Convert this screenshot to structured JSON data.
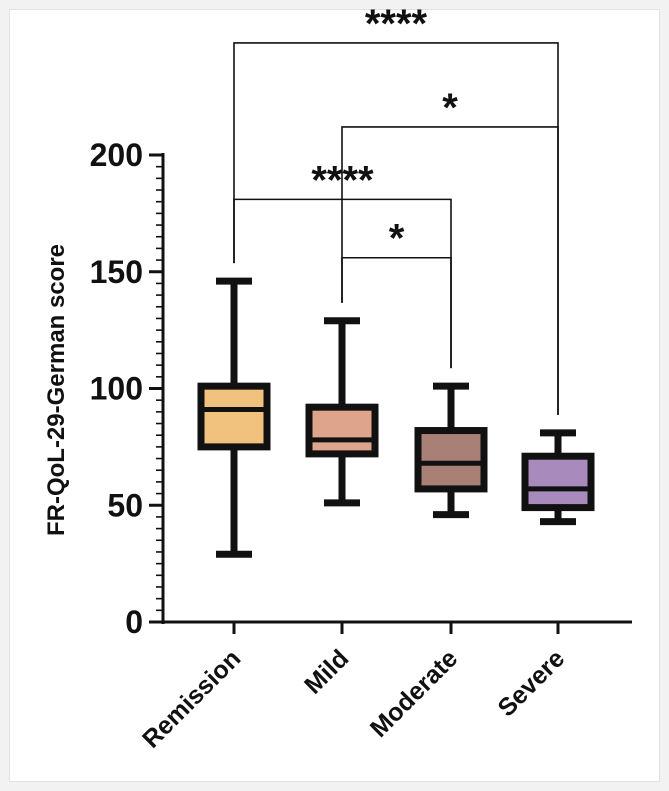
{
  "chart_data": {
    "type": "box",
    "title": "",
    "xlabel": "",
    "ylabel": "FR-QoL-29-German score",
    "ylim": [
      0,
      200
    ],
    "yticks": [
      0,
      50,
      100,
      150,
      200
    ],
    "categories": [
      "Remission",
      "Mild",
      "Moderate",
      "Severe"
    ],
    "boxes": [
      {
        "name": "Remission",
        "min": 29,
        "q1": 75,
        "median": 91,
        "q3": 101,
        "max": 146,
        "color": "#f0c27e"
      },
      {
        "name": "Mild",
        "min": 51,
        "q1": 72,
        "median": 78,
        "q3": 92,
        "max": 129,
        "color": "#dea58c"
      },
      {
        "name": "Moderate",
        "min": 46,
        "q1": 57,
        "median": 68,
        "q3": 82,
        "max": 101,
        "color": "#a88076"
      },
      {
        "name": "Severe",
        "min": 43,
        "q1": 49,
        "median": 57,
        "q3": 71,
        "max": 81,
        "color": "#a88bbc"
      }
    ],
    "significance": [
      {
        "from": "Remission",
        "to": "Severe",
        "label": "****",
        "level": 248
      },
      {
        "from": "Mild",
        "to": "Severe",
        "label": "*",
        "level": 212
      },
      {
        "from": "Remission",
        "to": "Moderate",
        "label": "****",
        "level": 181
      },
      {
        "from": "Mild",
        "to": "Moderate",
        "label": "*",
        "level": 156
      }
    ]
  }
}
